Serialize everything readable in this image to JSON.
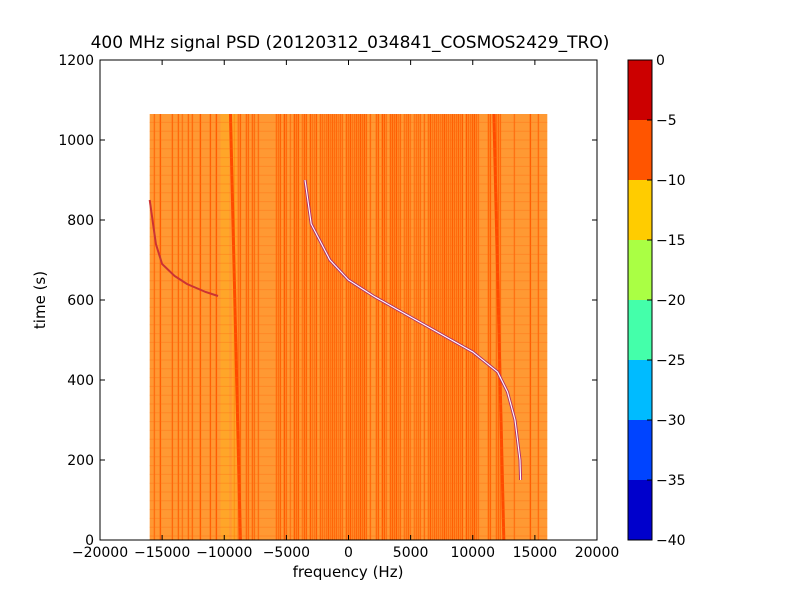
{
  "chart_data": {
    "type": "heatmap",
    "title": "400 MHz signal PSD (20120312_034841_COSMOS2429_TRO)",
    "xlabel": "frequency (Hz)",
    "ylabel": "time (s)",
    "xlim": [
      -20000,
      20000
    ],
    "ylim": [
      0,
      1200
    ],
    "x_ticks": [
      -20000,
      -15000,
      -10000,
      -5000,
      0,
      5000,
      10000,
      15000,
      20000
    ],
    "x_tick_labels": [
      "−20000",
      "−15000",
      "−10000",
      "−5000",
      "0",
      "5000",
      "10000",
      "15000",
      "20000"
    ],
    "y_ticks": [
      0,
      200,
      400,
      600,
      800,
      1000,
      1200
    ],
    "y_tick_labels": [
      "0",
      "200",
      "400",
      "600",
      "800",
      "1000",
      "1200"
    ],
    "data_extent": {
      "freq_min": -16000,
      "freq_max": 16000,
      "time_min": 0,
      "time_max": 1065
    },
    "colorbar": {
      "min": -40,
      "max": 0,
      "ticks": [
        0,
        -5,
        -10,
        -15,
        -20,
        -25,
        -30,
        -35,
        -40
      ],
      "tick_labels": [
        "0",
        "−5",
        "−10",
        "−15",
        "−20",
        "−25",
        "−30",
        "−35",
        "−40"
      ],
      "bands": [
        {
          "from": -40,
          "to": -35,
          "color": "#0000cc"
        },
        {
          "from": -35,
          "to": -30,
          "color": "#0044ff"
        },
        {
          "from": -30,
          "to": -25,
          "color": "#00bbff"
        },
        {
          "from": -25,
          "to": -20,
          "color": "#44ffaa"
        },
        {
          "from": -20,
          "to": -15,
          "color": "#aaff44"
        },
        {
          "from": -15,
          "to": -10,
          "color": "#ffcc00"
        },
        {
          "from": -10,
          "to": -5,
          "color": "#ff5500"
        },
        {
          "from": -5,
          "to": 0,
          "color": "#cc0000"
        }
      ]
    },
    "background_level_color": "#ff9933",
    "dominant_level_color": "#ff5a00",
    "signal_traces": [
      {
        "points_freq_time": [
          [
            -3500,
            900
          ],
          [
            -3000,
            790
          ],
          [
            -1500,
            700
          ],
          [
            0,
            650
          ],
          [
            2000,
            610
          ],
          [
            4000,
            575
          ],
          [
            6000,
            540
          ],
          [
            8000,
            505
          ],
          [
            10000,
            470
          ],
          [
            12000,
            420
          ],
          [
            12800,
            370
          ],
          [
            13400,
            300
          ],
          [
            13800,
            200
          ],
          [
            13850,
            150
          ]
        ]
      },
      {
        "points_freq_time": [
          [
            -16000,
            850
          ],
          [
            -15500,
            740
          ],
          [
            -15000,
            690
          ],
          [
            -14000,
            660
          ],
          [
            -13000,
            640
          ],
          [
            -11500,
            620
          ],
          [
            -10500,
            610
          ]
        ]
      }
    ]
  }
}
